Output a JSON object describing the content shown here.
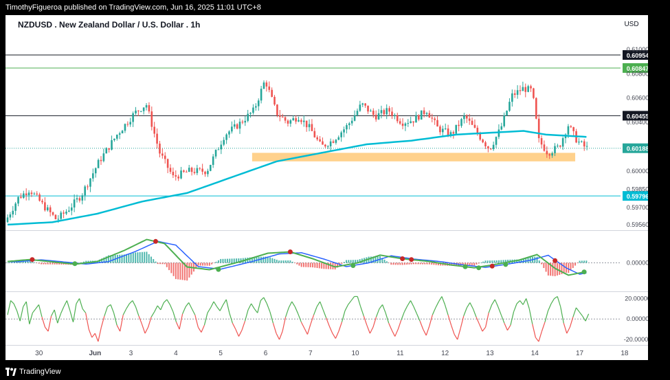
{
  "header": {
    "publisher": "TimothyFigueroa published on TradingView.com, Jun 16, 2025 11:01 UTC+8"
  },
  "footer": {
    "brand": "TradingView",
    "logo_icon": "tradingview-logo-icon"
  },
  "chart_data": {
    "type": "candlestick",
    "title": "NZDUSD . New Zealand Dollar / U.S. Dollar . 1h",
    "currency": "USD",
    "x_ticks": [
      "30",
      "Jun",
      "3",
      "4",
      "5",
      "6",
      "7",
      "10",
      "11",
      "12",
      "13",
      "14",
      "17",
      "18"
    ],
    "price_axis": {
      "ticks": [
        "0.61000",
        "0.60800",
        "0.60600",
        "0.60400",
        "0.60000",
        "0.59850",
        "0.59700",
        "0.59560"
      ],
      "range": [
        0.5952,
        0.6118
      ]
    },
    "horizontal_lines": [
      {
        "value": 0.60954,
        "label": "0.60954",
        "color": "#131722",
        "style": "black"
      },
      {
        "value": 0.60847,
        "label": "0.60847",
        "color": "#4caf50",
        "style": "green"
      },
      {
        "value": 0.60455,
        "label": "0.60455",
        "color": "#131722",
        "style": "black"
      },
      {
        "value": 0.59796,
        "label": "0.59796",
        "color": "#00bcd4",
        "style": "cyan"
      }
    ],
    "last_price": {
      "value": 0.60188,
      "label": "0.60188",
      "color": "#26a69a"
    },
    "support_zone": {
      "low": 0.6008,
      "high": 0.6015,
      "x_start_day": 5.45,
      "x_end_day": 12.65,
      "color": "#ffcc80"
    },
    "moving_average_color": "#00bcd4",
    "candle_colors": {
      "up": "#26a69a",
      "down": "#ef5350"
    },
    "price_path": [
      [
        0.0,
        0.5958
      ],
      [
        0.3,
        0.5978
      ],
      [
        0.55,
        0.5985
      ],
      [
        0.85,
        0.5972
      ],
      [
        1.15,
        0.596
      ],
      [
        1.4,
        0.5968
      ],
      [
        1.7,
        0.598
      ],
      [
        2.1,
        0.6008
      ],
      [
        2.5,
        0.603
      ],
      [
        2.9,
        0.6048
      ],
      [
        3.15,
        0.6055
      ],
      [
        3.45,
        0.6015
      ],
      [
        3.75,
        0.5995
      ],
      [
        4.1,
        0.6
      ],
      [
        4.5,
        0.6
      ],
      [
        4.9,
        0.603
      ],
      [
        5.2,
        0.6038
      ],
      [
        5.55,
        0.605
      ],
      [
        5.8,
        0.6075
      ],
      [
        6.05,
        0.6048
      ],
      [
        6.3,
        0.604
      ],
      [
        6.55,
        0.6045
      ],
      [
        6.8,
        0.6035
      ],
      [
        7.05,
        0.602
      ],
      [
        7.3,
        0.6025
      ],
      [
        7.65,
        0.6038
      ],
      [
        7.95,
        0.6055
      ],
      [
        8.25,
        0.6045
      ],
      [
        8.55,
        0.605
      ],
      [
        8.85,
        0.604
      ],
      [
        9.1,
        0.6042
      ],
      [
        9.4,
        0.605
      ],
      [
        9.65,
        0.6035
      ],
      [
        9.95,
        0.603
      ],
      [
        10.25,
        0.6045
      ],
      [
        10.55,
        0.603
      ],
      [
        10.8,
        0.6018
      ],
      [
        11.05,
        0.6035
      ],
      [
        11.3,
        0.6062
      ],
      [
        11.55,
        0.6068
      ],
      [
        11.75,
        0.6066
      ],
      [
        11.9,
        0.6025
      ],
      [
        12.1,
        0.6015
      ],
      [
        12.35,
        0.602
      ],
      [
        12.55,
        0.6038
      ],
      [
        12.75,
        0.6025
      ],
      [
        12.95,
        0.6019
      ]
    ],
    "ma_path": [
      [
        0.0,
        0.5956
      ],
      [
        1.0,
        0.5958
      ],
      [
        2.0,
        0.5965
      ],
      [
        3.0,
        0.5975
      ],
      [
        4.0,
        0.5982
      ],
      [
        5.0,
        0.5995
      ],
      [
        6.0,
        0.6008
      ],
      [
        7.0,
        0.6015
      ],
      [
        8.0,
        0.6022
      ],
      [
        9.0,
        0.6025
      ],
      [
        10.0,
        0.603
      ],
      [
        11.0,
        0.6032
      ],
      [
        11.5,
        0.6033
      ],
      [
        12.0,
        0.603
      ],
      [
        12.95,
        0.6028
      ]
    ],
    "macd": {
      "zero_label": "0.00000",
      "colors": {
        "macd": "#4caf50",
        "signal": "#2962ff",
        "macd_down": "#b71c1c",
        "hist_up": "#26a69a",
        "hist_down": "#ef5350",
        "cross_up": "#4caf50",
        "cross_down": "#c62828"
      },
      "path": [
        [
          0.0,
          0.05
        ],
        [
          0.5,
          0.12
        ],
        [
          1.1,
          0.02
        ],
        [
          1.5,
          -0.05
        ],
        [
          2.0,
          0.05
        ],
        [
          2.6,
          0.45
        ],
        [
          3.1,
          0.85
        ],
        [
          3.5,
          0.7
        ],
        [
          4.0,
          -0.15
        ],
        [
          4.5,
          -0.25
        ],
        [
          5.2,
          0.05
        ],
        [
          5.8,
          0.35
        ],
        [
          6.3,
          0.4
        ],
        [
          6.8,
          0.15
        ],
        [
          7.3,
          -0.15
        ],
        [
          7.8,
          0.0
        ],
        [
          8.3,
          0.28
        ],
        [
          8.8,
          0.15
        ],
        [
          9.4,
          0.05
        ],
        [
          9.9,
          -0.08
        ],
        [
          10.4,
          -0.18
        ],
        [
          10.9,
          -0.05
        ],
        [
          11.4,
          0.1
        ],
        [
          11.8,
          0.3
        ],
        [
          12.2,
          -0.2
        ],
        [
          12.5,
          -0.45
        ],
        [
          12.95,
          -0.3
        ]
      ],
      "crosses": [
        [
          0.55,
          0.12,
          "down"
        ],
        [
          1.5,
          -0.03,
          "up"
        ],
        [
          3.3,
          0.78,
          "down"
        ],
        [
          4.7,
          -0.24,
          "up"
        ],
        [
          6.3,
          0.4,
          "down"
        ],
        [
          7.7,
          -0.1,
          "up"
        ],
        [
          8.8,
          0.15,
          "down"
        ],
        [
          9.0,
          0.12,
          "down"
        ],
        [
          10.2,
          -0.14,
          "up"
        ],
        [
          10.5,
          -0.18,
          "up"
        ],
        [
          10.8,
          -0.12,
          "down"
        ],
        [
          11.1,
          -0.06,
          "up"
        ],
        [
          12.2,
          0.08,
          "down"
        ],
        [
          12.85,
          -0.33,
          "up"
        ]
      ]
    },
    "oscillator": {
      "ticks": [
        "20.00000",
        "0.00000",
        "-20.00000"
      ],
      "range": [
        -24,
        25
      ],
      "colors": {
        "positive": "#4caf50",
        "negative": "#ef5350"
      },
      "values": [
        4,
        18,
        15,
        8,
        -2,
        12,
        17,
        -5,
        6,
        10,
        14,
        2,
        -8,
        -12,
        3,
        9,
        -4,
        5,
        12,
        18,
        8,
        -3,
        15,
        20,
        10,
        6,
        -10,
        -18,
        -14,
        -22,
        -8,
        3,
        12,
        14,
        6,
        -6,
        -12,
        4,
        10,
        15,
        18,
        12,
        3,
        -5,
        -14,
        -8,
        2,
        7,
        13,
        9,
        16,
        19,
        14,
        7,
        -3,
        -10,
        5,
        12,
        16,
        10,
        4,
        -8,
        -13,
        -6,
        6,
        11,
        17,
        12,
        8,
        14,
        19,
        6,
        -4,
        -10,
        -17,
        -11,
        -2,
        9,
        15,
        10,
        6,
        18,
        21,
        15,
        7,
        -4,
        -14,
        -20,
        -12,
        2,
        11,
        17,
        12,
        5,
        -3,
        -9,
        -15,
        -5,
        4,
        12,
        17,
        9,
        1,
        -7,
        -14,
        -19,
        -12,
        -3,
        8,
        14,
        18,
        22,
        22,
        12,
        3,
        -6,
        -14,
        -8,
        2,
        10,
        14,
        6,
        -4,
        -11,
        -17,
        -10,
        -1,
        7,
        13,
        18,
        12,
        5,
        -2,
        -10,
        -16,
        -7,
        4,
        11,
        17,
        22,
        14,
        4,
        -6,
        -15,
        -20,
        -9,
        3,
        11,
        16,
        10,
        2,
        -5,
        -12,
        -8,
        6,
        14,
        19,
        12,
        4,
        -4,
        -11,
        -6,
        7,
        15,
        18,
        14,
        20,
        10,
        -5,
        -18,
        -22,
        -12,
        -3,
        8,
        15,
        20,
        22,
        12,
        -4,
        -14,
        -8,
        2,
        11,
        7,
        3,
        -2,
        5
      ]
    }
  }
}
